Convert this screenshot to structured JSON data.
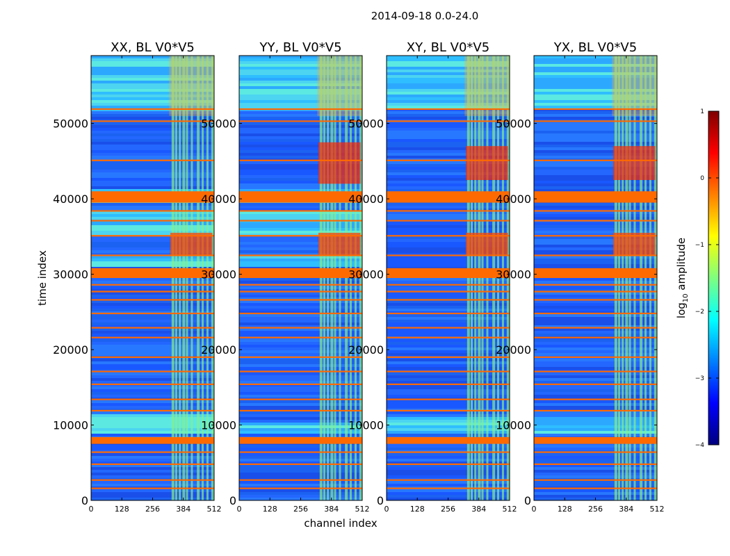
{
  "figure": {
    "suptitle": "2014-09-18 0.0-24.0",
    "xlabel": "channel index",
    "ylabel": "time index"
  },
  "colorbar": {
    "label_prefix": "log",
    "label_sub": "10",
    "label_suffix": " amplitude",
    "range": [
      -4,
      1
    ],
    "ticks": [
      "1",
      "0",
      "−1",
      "−2",
      "−3",
      "−4"
    ],
    "colors": [
      "#7f0000",
      "#ff0000",
      "#ff7f00",
      "#ffff00",
      "#7fff7f",
      "#00ffff",
      "#007fff",
      "#0000ff",
      "#00007f"
    ]
  },
  "chart_data": [
    {
      "type": "heatmap",
      "title": "XX, BL V0*V5",
      "xlim": [
        0,
        512
      ],
      "ylim": [
        0,
        59000
      ],
      "xticks": [
        0,
        128,
        256,
        384,
        512
      ],
      "yticks": [
        0,
        10000,
        20000,
        30000,
        40000,
        50000
      ],
      "xtick_labels": [
        "0",
        "128",
        "256",
        "384",
        "512"
      ],
      "ytick_labels": [
        "0",
        "10000",
        "20000",
        "30000",
        "40000",
        "50000"
      ],
      "quiet_bands": [
        [
          8500,
          11200
        ],
        [
          30700,
          32400
        ],
        [
          34700,
          38200
        ],
        [
          39200,
          41000
        ],
        [
          51300,
          59000
        ]
      ],
      "hot_band": [
        32500,
        35500
      ],
      "hot2_band": null
    },
    {
      "type": "heatmap",
      "title": "YY, BL V0*V5",
      "xlim": [
        0,
        512
      ],
      "ylim": [
        0,
        59000
      ],
      "xticks": [
        0,
        128,
        256,
        384,
        512
      ],
      "yticks": [
        0,
        10000,
        20000,
        30000,
        40000,
        50000
      ],
      "xtick_labels": [
        "0",
        "128",
        "256",
        "384",
        "512"
      ],
      "ytick_labels": [
        "0",
        "10000",
        "20000",
        "30000",
        "40000",
        "50000"
      ],
      "quiet_bands": [
        [
          8500,
          10200
        ],
        [
          30700,
          32400
        ],
        [
          34700,
          38200
        ],
        [
          39200,
          41000
        ],
        [
          51300,
          59000
        ]
      ],
      "hot_band": [
        32500,
        35500
      ],
      "hot2_band": [
        42000,
        47500
      ]
    },
    {
      "type": "heatmap",
      "title": "XY, BL V0*V5",
      "xlim": [
        0,
        512
      ],
      "ylim": [
        0,
        59000
      ],
      "xticks": [
        0,
        128,
        256,
        384,
        512
      ],
      "yticks": [
        0,
        10000,
        20000,
        30000,
        40000,
        50000
      ],
      "xtick_labels": [
        "0",
        "128",
        "256",
        "384",
        "512"
      ],
      "ytick_labels": [
        "0",
        "10000",
        "20000",
        "30000",
        "40000",
        "50000"
      ],
      "quiet_bands": [
        [
          8500,
          10800
        ],
        [
          51800,
          59000
        ]
      ],
      "hot_band": [
        32500,
        35500
      ],
      "hot2_band": [
        42500,
        47000
      ]
    },
    {
      "type": "heatmap",
      "title": "YX, BL V0*V5",
      "xlim": [
        0,
        512
      ],
      "ylim": [
        0,
        59000
      ],
      "xticks": [
        0,
        128,
        256,
        384,
        512
      ],
      "yticks": [
        0,
        10000,
        20000,
        30000,
        40000,
        50000
      ],
      "xtick_labels": [
        "0",
        "128",
        "256",
        "384",
        "512"
      ],
      "ytick_labels": [
        "0",
        "10000",
        "20000",
        "30000",
        "40000",
        "50000"
      ],
      "quiet_bands": [
        [
          8500,
          10800
        ],
        [
          51800,
          59000
        ]
      ],
      "hot_band": [
        32500,
        35500
      ],
      "hot2_band": [
        42500,
        47000
      ]
    }
  ],
  "flagged_bands": [
    [
      7500,
      8400
    ],
    [
      29500,
      30800
    ],
    [
      39500,
      41000
    ],
    [
      50200,
      50400
    ],
    [
      51800,
      52000
    ],
    [
      21500,
      21700
    ],
    [
      26500,
      26700
    ],
    [
      24700,
      24900
    ],
    [
      4700,
      4900
    ],
    [
      2600,
      2800
    ],
    [
      13300,
      13500
    ],
    [
      17000,
      17200
    ],
    [
      18900,
      19100
    ],
    [
      32400,
      32600
    ],
    [
      35000,
      35200
    ],
    [
      37000,
      37200
    ],
    [
      38300,
      38500
    ],
    [
      45000,
      45200
    ],
    [
      1500,
      1700
    ],
    [
      6300,
      6500
    ],
    [
      11800,
      12000
    ],
    [
      15300,
      15500
    ],
    [
      22800,
      23000
    ],
    [
      27600,
      27800
    ],
    [
      28500,
      28700
    ]
  ]
}
